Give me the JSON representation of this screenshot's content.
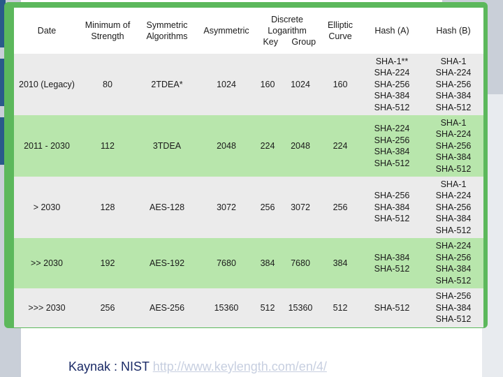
{
  "table": {
    "headers": {
      "date": "Date",
      "min_strength": [
        "Minimum of",
        "Strength"
      ],
      "symmetric": [
        "Symmetric",
        "Algorithms"
      ],
      "asymmetric": "Asymmetric",
      "discrete_log": [
        "Discrete",
        "Logarithm"
      ],
      "discrete_log_key": "Key",
      "discrete_log_group": "Group",
      "elliptic": [
        "Elliptic",
        "Curve"
      ],
      "hash_a": "Hash (A)",
      "hash_b": "Hash (B)"
    },
    "rows": [
      {
        "date": "2010 (Legacy)",
        "min": "80",
        "sym": "2TDEA*",
        "asym": "1024",
        "key": "160",
        "group": "1024",
        "ec": "160",
        "hash_a": [
          "SHA-1**",
          "SHA-224",
          "SHA-256",
          "SHA-384",
          "SHA-512"
        ],
        "hash_b": [
          "SHA-1",
          "SHA-224",
          "SHA-256",
          "SHA-384",
          "SHA-512"
        ]
      },
      {
        "date": "2011 - 2030",
        "min": "112",
        "sym": "3TDEA",
        "asym": "2048",
        "key": "224",
        "group": "2048",
        "ec": "224",
        "hash_a": [
          "SHA-224",
          "SHA-256",
          "SHA-384",
          "SHA-512"
        ],
        "hash_b": [
          "SHA-1",
          "SHA-224",
          "SHA-256",
          "SHA-384",
          "SHA-512"
        ]
      },
      {
        "date": "> 2030",
        "min": "128",
        "sym": "AES-128",
        "asym": "3072",
        "key": "256",
        "group": "3072",
        "ec": "256",
        "hash_a": [
          "SHA-256",
          "SHA-384",
          "SHA-512"
        ],
        "hash_b": [
          "SHA-1",
          "SHA-224",
          "SHA-256",
          "SHA-384",
          "SHA-512"
        ]
      },
      {
        "date": ">> 2030",
        "min": "192",
        "sym": "AES-192",
        "asym": "7680",
        "key": "384",
        "group": "7680",
        "ec": "384",
        "hash_a": [
          "SHA-384",
          "SHA-512"
        ],
        "hash_b": [
          "SHA-224",
          "SHA-256",
          "SHA-384",
          "SHA-512"
        ]
      },
      {
        "date": ">>> 2030",
        "min": "256",
        "sym": "AES-256",
        "asym": "15360",
        "key": "512",
        "group": "15360",
        "ec": "512",
        "hash_a": [
          "SHA-512"
        ],
        "hash_b": [
          "SHA-256",
          "SHA-384",
          "SHA-512"
        ]
      }
    ]
  },
  "footer": {
    "source_label": "Kaynak : NIST ",
    "link": "http://www.keylength.com/en/4/"
  },
  "colors": {
    "frame": "#5cb85c",
    "row_green": "#b8e6ac",
    "row_gray": "#ebebeb"
  }
}
